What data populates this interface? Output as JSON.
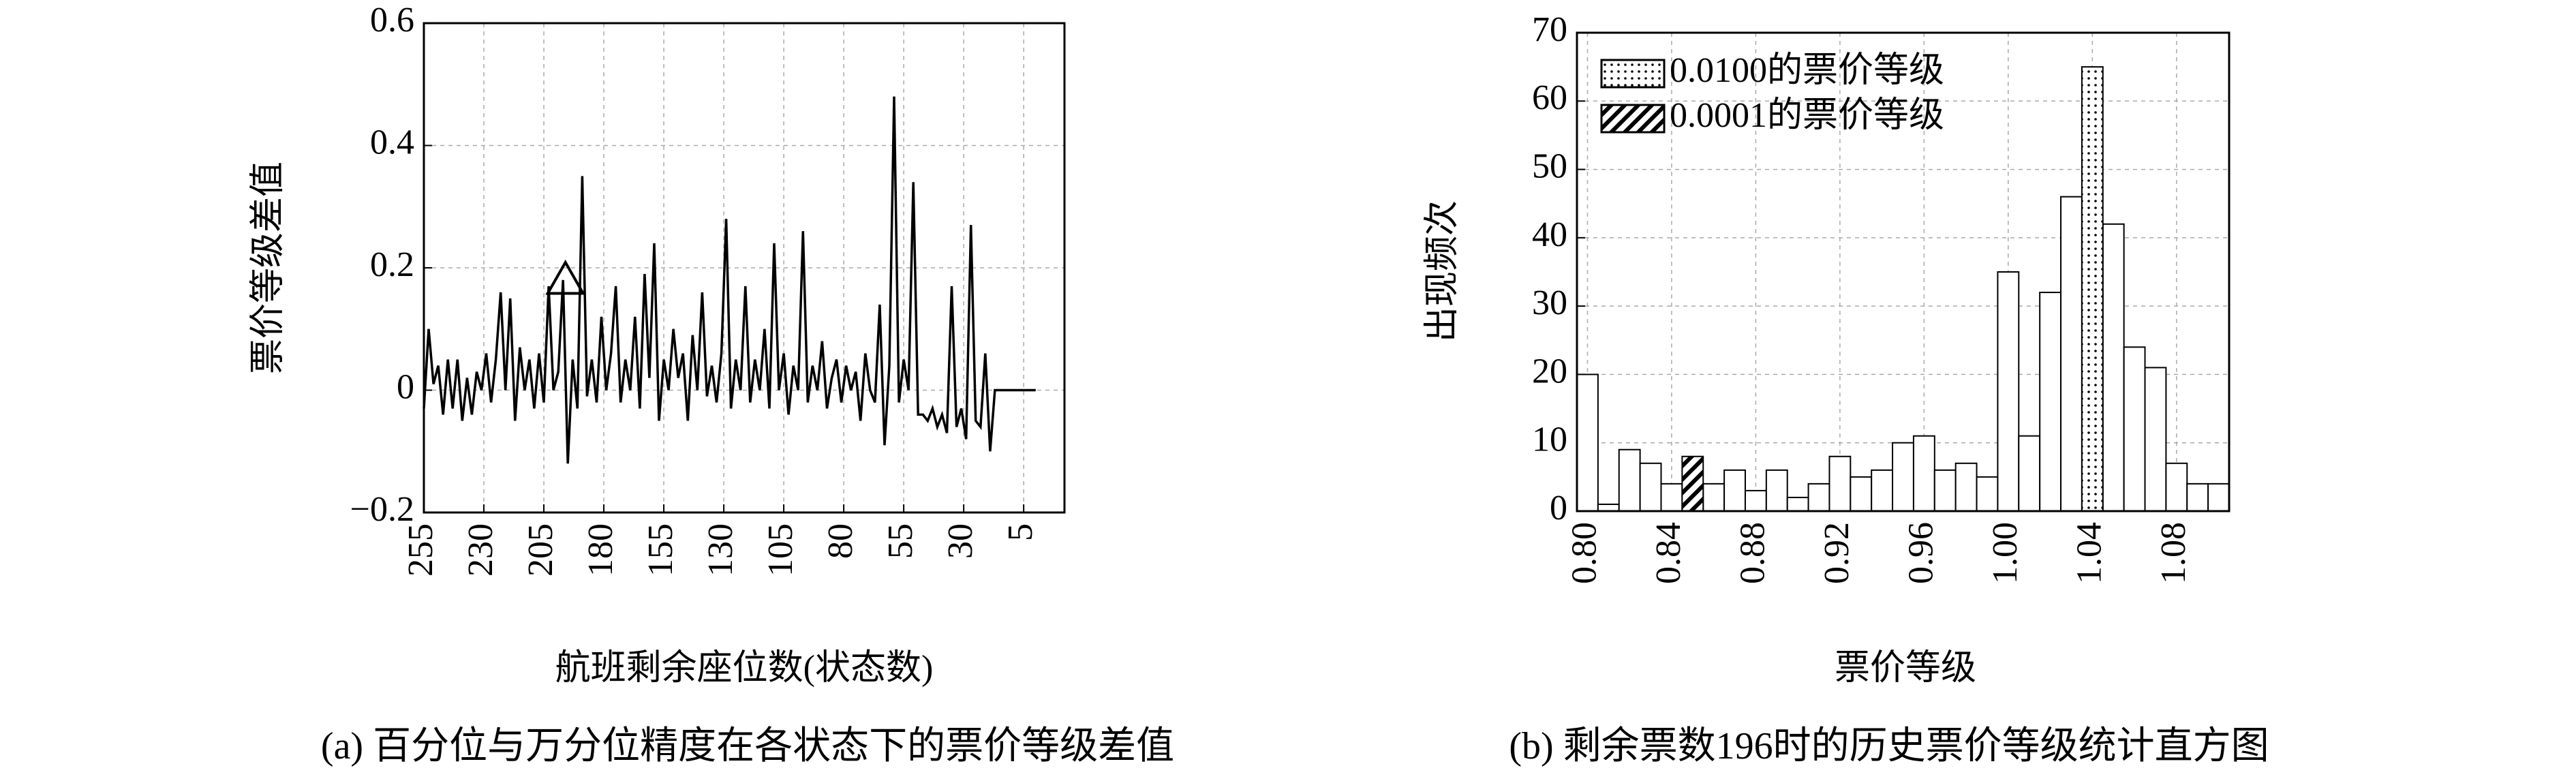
{
  "chart_data": [
    {
      "type": "line",
      "ylabel": "票价等级差值",
      "xlabel": "航班剩余座位数(状态数)",
      "caption": "(a) 百分位与万分位精度在各状态下的票价等级差值",
      "color": "#000000",
      "grid": true,
      "xlim": [
        255,
        -12
      ],
      "xticks": [
        255,
        230,
        205,
        180,
        155,
        130,
        105,
        80,
        55,
        30,
        5
      ],
      "ylim": [
        -0.2,
        0.6
      ],
      "yticks": [
        {
          "value": -0.2,
          "label": "−0.2"
        },
        0,
        0.2,
        0.4,
        0.6
      ],
      "x": [
        255,
        253,
        251,
        249,
        247,
        245,
        243,
        241,
        239,
        237,
        235,
        233,
        231,
        229,
        227,
        225,
        223,
        221,
        219,
        217,
        215,
        213,
        211,
        209,
        207,
        205,
        203,
        201,
        199,
        197,
        195,
        193,
        191,
        189,
        187,
        185,
        183,
        181,
        179,
        177,
        175,
        173,
        171,
        169,
        167,
        165,
        163,
        161,
        159,
        157,
        155,
        153,
        151,
        149,
        147,
        145,
        143,
        141,
        139,
        137,
        135,
        133,
        131,
        129,
        127,
        125,
        123,
        121,
        119,
        117,
        115,
        113,
        111,
        109,
        107,
        105,
        103,
        101,
        99,
        97,
        95,
        93,
        91,
        89,
        87,
        85,
        83,
        81,
        79,
        77,
        75,
        73,
        71,
        69,
        67,
        65,
        63,
        61,
        59,
        57,
        55,
        53,
        51,
        49,
        47,
        45,
        43,
        41,
        39,
        37,
        35,
        33,
        31,
        29,
        27,
        25,
        23,
        21,
        19,
        17,
        0
      ],
      "values": [
        -0.03,
        0.1,
        0.01,
        0.04,
        -0.04,
        0.05,
        -0.03,
        0.05,
        -0.05,
        0.02,
        -0.04,
        0.03,
        0.0,
        0.06,
        -0.02,
        0.05,
        0.16,
        0.0,
        0.15,
        -0.05,
        0.07,
        0.0,
        0.05,
        -0.03,
        0.06,
        -0.02,
        0.17,
        0.0,
        0.03,
        0.18,
        -0.12,
        0.05,
        -0.03,
        0.35,
        -0.01,
        0.05,
        -0.02,
        0.12,
        0.0,
        0.06,
        0.17,
        -0.02,
        0.05,
        0.0,
        0.12,
        -0.03,
        0.19,
        0.02,
        0.24,
        -0.05,
        0.05,
        0.0,
        0.1,
        0.02,
        0.06,
        -0.05,
        0.09,
        0.0,
        0.16,
        -0.01,
        0.04,
        -0.02,
        0.06,
        0.28,
        -0.03,
        0.05,
        0.0,
        0.17,
        -0.02,
        0.05,
        0.0,
        0.1,
        -0.03,
        0.24,
        0.0,
        0.06,
        -0.04,
        0.04,
        0.0,
        0.26,
        -0.02,
        0.04,
        0.0,
        0.08,
        -0.03,
        0.02,
        0.05,
        -0.02,
        0.04,
        0.0,
        0.03,
        -0.05,
        0.06,
        0.0,
        -0.02,
        0.14,
        -0.09,
        0.04,
        0.48,
        -0.02,
        0.05,
        0.0,
        0.34,
        -0.04,
        -0.04,
        -0.05,
        -0.03,
        -0.06,
        -0.04,
        -0.07,
        0.17,
        -0.06,
        -0.03,
        -0.08,
        0.27,
        -0.05,
        -0.06,
        0.06,
        -0.1,
        0.0,
        0.0
      ],
      "highlight_point": {
        "x": 196,
        "y": 0.18,
        "shape": "triangle"
      }
    },
    {
      "type": "histogram",
      "ylabel": "出现频次",
      "xlabel": "票价等级",
      "caption": "(b) 剩余票数196时的历史票价等级统计直方图",
      "grid": true,
      "legend": "upper-left",
      "xlim": [
        0.795,
        1.105
      ],
      "xticks": [
        {
          "value": 0.8,
          "label": "0.80"
        },
        {
          "value": 0.84,
          "label": "0.84"
        },
        {
          "value": 0.88,
          "label": "0.88"
        },
        {
          "value": 0.92,
          "label": "0.92"
        },
        {
          "value": 0.96,
          "label": "0.96"
        },
        {
          "value": 1.0,
          "label": "1.00"
        },
        {
          "value": 1.04,
          "label": "1.04"
        },
        {
          "value": 1.08,
          "label": "1.08"
        }
      ],
      "ylim": [
        0,
        70
      ],
      "yticks": [
        0,
        10,
        20,
        30,
        40,
        50,
        60,
        70
      ],
      "bins": [
        0.795,
        0.805,
        0.815,
        0.825,
        0.835,
        0.845,
        0.855,
        0.865,
        0.875,
        0.885,
        0.895,
        0.905,
        0.915,
        0.925,
        0.935,
        0.945,
        0.955,
        0.965,
        0.975,
        0.985,
        0.995,
        1.005,
        1.015,
        1.025,
        1.035,
        1.045,
        1.055,
        1.065,
        1.075,
        1.085,
        1.095,
        1.105
      ],
      "series": [
        {
          "pattern": "plain",
          "counts": [
            20,
            1,
            9,
            7,
            4,
            null,
            4,
            6,
            3,
            6,
            2,
            4,
            8,
            5,
            6,
            10,
            11,
            6,
            7,
            5,
            35,
            11,
            32,
            46,
            null,
            42,
            24,
            21,
            7,
            4,
            4
          ]
        },
        {
          "name": "0.0100的票价等级",
          "pattern": "dots",
          "counts": [
            null,
            null,
            null,
            null,
            null,
            null,
            null,
            null,
            null,
            null,
            null,
            null,
            null,
            null,
            null,
            null,
            null,
            null,
            null,
            null,
            null,
            null,
            null,
            null,
            65,
            null,
            null,
            null,
            null,
            null,
            null
          ]
        },
        {
          "name": "0.0001的票价等级",
          "pattern": "hatch",
          "counts": [
            null,
            null,
            null,
            null,
            null,
            8,
            null,
            null,
            null,
            null,
            null,
            null,
            null,
            null,
            null,
            null,
            null,
            null,
            null,
            null,
            null,
            null,
            null,
            null,
            null,
            null,
            null,
            null,
            null,
            null,
            null
          ]
        }
      ]
    }
  ]
}
